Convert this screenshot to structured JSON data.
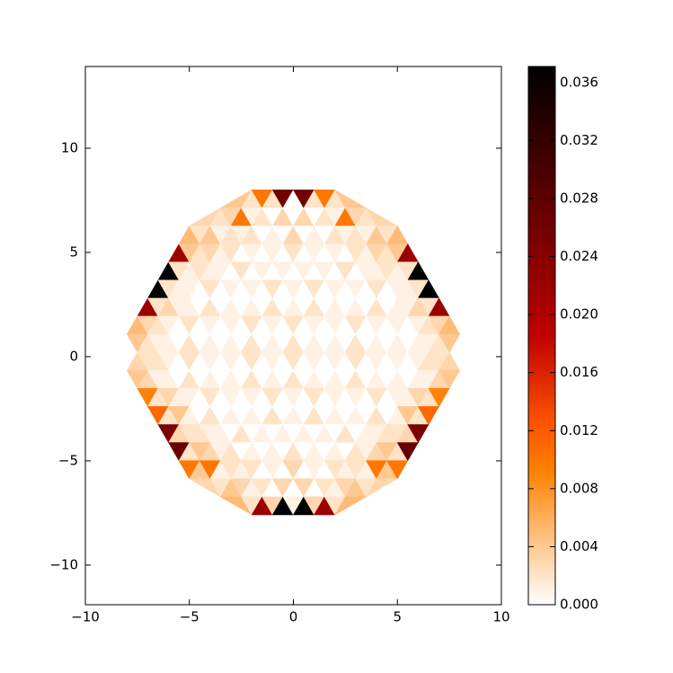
{
  "chart_data": {
    "type": "tripcolor",
    "xlim": [
      -10,
      10
    ],
    "ylim": [
      -11.9,
      13.92
    ],
    "xticks": [
      {
        "value": -10,
        "label": "−10"
      },
      {
        "value": -5,
        "label": "−5"
      },
      0,
      5,
      10
    ],
    "yticks": [
      {
        "value": -10,
        "label": "−10"
      },
      {
        "value": -5,
        "label": "−5"
      },
      0,
      5,
      10
    ],
    "colormap": "gist_heat_r",
    "clim": [
      0,
      0.0371
    ],
    "colorbar_ticks": [
      {
        "value": 0,
        "label": "0.000"
      },
      {
        "value": 0.004,
        "label": "0.004"
      },
      {
        "value": 0.008,
        "label": "0.008"
      },
      {
        "value": 0.012,
        "label": "0.012"
      },
      {
        "value": 0.016,
        "label": "0.016"
      },
      {
        "value": 0.02,
        "label": "0.020"
      },
      {
        "value": 0.024,
        "label": "0.024"
      },
      {
        "value": 0.028,
        "label": "0.028"
      },
      {
        "value": 0.032,
        "label": "0.032"
      },
      {
        "value": 0.036,
        "label": "0.036"
      }
    ],
    "rows": [
      [
        8.0,
        -2,
        2
      ],
      [
        7.134,
        -3.5,
        3.5
      ],
      [
        6.268,
        -5,
        5
      ],
      [
        5.402,
        -5.5,
        5.5
      ],
      [
        4.536,
        -6,
        6
      ],
      [
        3.67,
        -6.5,
        6.5
      ],
      [
        2.804,
        -7,
        7
      ],
      [
        1.938,
        -7.5,
        7.5
      ],
      [
        1.072,
        -8,
        8
      ],
      [
        0.206,
        -7.5,
        7.5
      ],
      [
        -0.66,
        -8,
        8
      ],
      [
        -1.526,
        -7.5,
        7.5
      ],
      [
        -2.392,
        -7,
        7
      ],
      [
        -3.258,
        -6.5,
        6.5
      ],
      [
        -4.124,
        -6,
        6
      ],
      [
        -4.99,
        -5.5,
        5.5
      ],
      [
        -5.856,
        -5,
        5
      ],
      [
        -6.722,
        -3.5,
        3.5
      ],
      [
        -7.588,
        -2,
        2
      ]
    ],
    "values": [
      [
        0.004,
        0.002,
        0.01,
        0.002,
        0.026,
        0,
        0.026,
        0.002,
        0.01,
        0.002,
        0.004
      ],
      [
        0.003,
        0.002,
        0.003,
        0.01,
        0.001,
        0.002,
        0,
        0.003,
        0,
        0.003,
        0,
        0.002,
        0.001,
        0.01,
        0.003,
        0.002,
        0.003
      ],
      [
        0.005,
        0.002,
        0.004,
        0.001,
        0.002,
        0.001,
        0.002,
        0,
        0.001,
        0,
        0.003,
        0,
        0.001,
        0,
        0.002,
        0.001,
        0.002,
        0.001,
        0.004,
        0.002,
        0.005
      ],
      [
        0.022,
        0.004,
        0.002,
        0.003,
        0.001,
        0.002,
        0,
        0.001,
        0,
        0.001,
        0,
        0.002,
        0,
        0.001,
        0,
        0.001,
        0,
        0.002,
        0.001,
        0.003,
        0.002,
        0.004,
        0.022
      ],
      [
        0.037,
        0.002,
        0.001,
        0.002,
        0.001,
        0.001,
        0,
        0.002,
        0,
        0.001,
        0,
        0.001,
        0,
        0.001,
        0,
        0.001,
        0,
        0.002,
        0,
        0.001,
        0.001,
        0.002,
        0.001,
        0.002,
        0.037
      ],
      [
        0.037,
        0.002,
        0.001,
        0.001,
        0,
        0.002,
        0,
        0.001,
        0,
        0.001,
        0,
        0.002,
        0,
        0.001,
        0,
        0.002,
        0,
        0.001,
        0,
        0.001,
        0,
        0.002,
        0,
        0.001,
        0.001,
        0.002,
        0.037
      ],
      [
        0.022,
        0.002,
        0.003,
        0.001,
        0.001,
        0,
        0.002,
        0,
        0.001,
        0,
        0.001,
        0,
        0.002,
        0,
        0.001,
        0,
        0.002,
        0,
        0.001,
        0,
        0.001,
        0,
        0.002,
        0,
        0.001,
        0.001,
        0.003,
        0.002,
        0.022
      ],
      [
        0.005,
        0.003,
        0.002,
        0.001,
        0,
        0.002,
        0,
        0.001,
        0,
        0.001,
        0,
        0.002,
        0,
        0.001,
        0,
        0.002,
        0,
        0.001,
        0,
        0.001,
        0,
        0.002,
        0,
        0.001,
        0,
        0.001,
        0,
        0.001,
        0.002,
        0.003,
        0.005
      ],
      [
        0.004,
        0.002,
        0.001,
        0.001,
        0,
        0.002,
        0,
        0.001,
        0,
        0.001,
        0,
        0.002,
        0,
        0.001,
        0,
        0.002,
        0,
        0.001,
        0,
        0.001,
        0,
        0.002,
        0,
        0.001,
        0,
        0.001,
        0,
        0.001,
        0.001,
        0.002,
        0.004
      ],
      [
        0.003,
        0.002,
        0.002,
        0.001,
        0,
        0.002,
        0,
        0.001,
        0,
        0.001,
        0,
        0.002,
        0,
        0.001,
        0,
        0.002,
        0,
        0.001,
        0,
        0.001,
        0,
        0.002,
        0,
        0.001,
        0,
        0.001,
        0,
        0.001,
        0.002,
        0.002,
        0.003
      ],
      [
        0.004,
        0.003,
        0.001,
        0.001,
        0,
        0.002,
        0,
        0.001,
        0,
        0.001,
        0,
        0.002,
        0,
        0.001,
        0,
        0.002,
        0,
        0.001,
        0,
        0.001,
        0,
        0.002,
        0,
        0.001,
        0,
        0.001,
        0,
        0.001,
        0.001,
        0.003,
        0.004
      ],
      [
        0.009,
        0.002,
        0.003,
        0.001,
        0.001,
        0,
        0.002,
        0,
        0.001,
        0,
        0.001,
        0,
        0.002,
        0,
        0.001,
        0,
        0.002,
        0,
        0.001,
        0,
        0.001,
        0,
        0.002,
        0,
        0.001,
        0.001,
        0.003,
        0.002,
        0.009
      ],
      [
        0.011,
        0.002,
        0.004,
        0.001,
        0,
        0.002,
        0,
        0.001,
        0,
        0.001,
        0,
        0.002,
        0,
        0.001,
        0,
        0.002,
        0,
        0.001,
        0,
        0.001,
        0,
        0.002,
        0,
        0.001,
        0.004,
        0.002,
        0.011
      ],
      [
        0.025,
        0.003,
        0.002,
        0.002,
        0.001,
        0.001,
        0,
        0.002,
        0,
        0.001,
        0,
        0.001,
        0,
        0.001,
        0,
        0.001,
        0,
        0.002,
        0,
        0.001,
        0.001,
        0.002,
        0.002,
        0.003,
        0.025
      ],
      [
        0.027,
        0.002,
        0.004,
        0.003,
        0.001,
        0.002,
        0,
        0.001,
        0,
        0.001,
        0,
        0.002,
        0,
        0.001,
        0,
        0.001,
        0,
        0.002,
        0.001,
        0.003,
        0.004,
        0.002,
        0.027
      ],
      [
        0.01,
        0.004,
        0.01,
        0.001,
        0.002,
        0.001,
        0.002,
        0,
        0.001,
        0,
        0.003,
        0,
        0.001,
        0,
        0.002,
        0.001,
        0.002,
        0.001,
        0.01,
        0.004,
        0.01
      ],
      [
        0.003,
        0.002,
        0.004,
        0.003,
        0.001,
        0.002,
        0,
        0.003,
        0,
        0.003,
        0,
        0.002,
        0.001,
        0.003,
        0.004,
        0.002,
        0.003
      ],
      [
        0.005,
        0.002,
        0.022,
        0.003,
        0.037,
        0.001,
        0.037,
        0.003,
        0.022,
        0.002,
        0.005
      ]
    ]
  }
}
